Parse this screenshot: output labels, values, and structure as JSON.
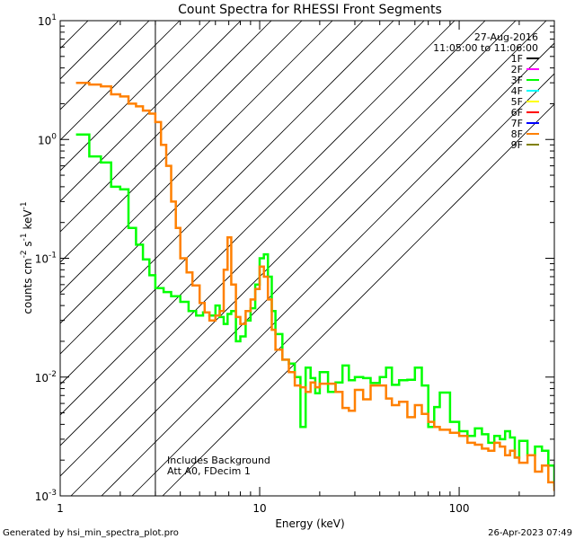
{
  "chart_data": {
    "type": "line",
    "title": "Count Spectra for RHESSI Front Segments",
    "xlabel": "Energy (keV)",
    "ylabel": {
      "base": "counts cm",
      "e1": "-2",
      "mid1": " s",
      "e2": "-1",
      "mid2": " keV",
      "e3": "-1"
    },
    "xscale": "log",
    "yscale": "log",
    "xlim": [
      1,
      300
    ],
    "ylim": [
      0.001,
      10
    ],
    "x_ticks": [
      {
        "value": 1,
        "label": "1"
      },
      {
        "value": 10,
        "label": "10"
      },
      {
        "value": 100,
        "label": "100"
      }
    ],
    "y_ticks": [
      {
        "value": 0.001,
        "base": "10",
        "exp": "-3"
      },
      {
        "value": 0.01,
        "base": "10",
        "exp": "-2"
      },
      {
        "value": 0.1,
        "base": "10",
        "exp": "-1"
      },
      {
        "value": 1,
        "base": "10",
        "exp": "0"
      },
      {
        "value": 10,
        "base": "10",
        "exp": "1"
      }
    ],
    "hatched_region_x": [
      1,
      3
    ],
    "date": "27-Aug-2016",
    "time_range": "11:05:00 to 11:06:00",
    "legend": [
      {
        "name": "1F",
        "color": "#000000"
      },
      {
        "name": "2F",
        "color": "#ff00ff"
      },
      {
        "name": "3F",
        "color": "#00ff00"
      },
      {
        "name": "4F",
        "color": "#00ffff"
      },
      {
        "name": "5F",
        "color": "#ffff00"
      },
      {
        "name": "6F",
        "color": "#ff0000"
      },
      {
        "name": "7F",
        "color": "#0000ff"
      },
      {
        "name": "8F",
        "color": "#ff8000"
      },
      {
        "name": "9F",
        "color": "#808000"
      }
    ],
    "annotations": [
      "Includes Background",
      "Att A0, FDecim 1"
    ],
    "series": [
      {
        "name": "3F",
        "color": "#00ff00",
        "x": [
          1.2,
          1.4,
          1.6,
          1.8,
          2.0,
          2.2,
          2.4,
          2.6,
          2.8,
          3.0,
          3.3,
          3.6,
          4.0,
          4.4,
          4.8,
          5.2,
          5.6,
          6.0,
          6.3,
          6.6,
          6.9,
          7.2,
          7.6,
          8.0,
          8.5,
          9.0,
          9.5,
          10.0,
          10.5,
          11.0,
          11.5,
          12.0,
          13.0,
          14.0,
          15.0,
          16.0,
          17.0,
          18.0,
          19.0,
          20.0,
          22.0,
          24.0,
          26.0,
          28.0,
          30.0,
          33.0,
          36.0,
          40.0,
          43.0,
          46.0,
          50.0,
          55.0,
          60.0,
          65.0,
          70.0,
          75.0,
          80.0,
          90.0,
          100.0,
          110.0,
          120.0,
          130.0,
          140.0,
          150.0,
          160.0,
          170.0,
          180.0,
          190.0,
          200.0,
          220.0,
          240.0,
          260.0,
          280.0,
          300.0
        ],
        "y": [
          1.1,
          0.72,
          0.64,
          0.4,
          0.38,
          0.18,
          0.13,
          0.098,
          0.072,
          0.056,
          0.052,
          0.048,
          0.043,
          0.036,
          0.033,
          0.035,
          0.033,
          0.04,
          0.032,
          0.028,
          0.034,
          0.036,
          0.02,
          0.022,
          0.03,
          0.038,
          0.06,
          0.1,
          0.108,
          0.07,
          0.036,
          0.023,
          0.014,
          0.013,
          0.01,
          0.0038,
          0.012,
          0.0098,
          0.0073,
          0.011,
          0.0075,
          0.009,
          0.0125,
          0.0094,
          0.01,
          0.0098,
          0.0089,
          0.01,
          0.012,
          0.0086,
          0.0094,
          0.0095,
          0.012,
          0.0085,
          0.0038,
          0.0056,
          0.0074,
          0.0042,
          0.0035,
          0.0032,
          0.0037,
          0.0033,
          0.0028,
          0.0032,
          0.003,
          0.0035,
          0.0031,
          0.0021,
          0.0029,
          0.0022,
          0.0026,
          0.0024,
          0.0018,
          0.0012
        ]
      },
      {
        "name": "8F",
        "color": "#ff8000",
        "x": [
          1.2,
          1.4,
          1.6,
          1.8,
          2.0,
          2.2,
          2.4,
          2.6,
          2.8,
          3.0,
          3.2,
          3.4,
          3.6,
          3.8,
          4.0,
          4.3,
          4.6,
          5.0,
          5.3,
          5.6,
          6.0,
          6.3,
          6.6,
          6.9,
          7.2,
          7.6,
          8.0,
          8.5,
          9.0,
          9.5,
          10.0,
          10.5,
          11.0,
          11.5,
          12.0,
          13.0,
          14.0,
          15.0,
          16.0,
          17.0,
          18.0,
          19.0,
          20.0,
          22.0,
          24.0,
          26.0,
          28.0,
          30.0,
          33.0,
          36.0,
          40.0,
          43.0,
          46.0,
          50.0,
          55.0,
          60.0,
          65.0,
          70.0,
          75.0,
          80.0,
          90.0,
          100.0,
          110.0,
          120.0,
          130.0,
          140.0,
          150.0,
          160.0,
          170.0,
          180.0,
          190.0,
          200.0,
          220.0,
          240.0,
          260.0,
          280.0,
          300.0
        ],
        "y": [
          3.0,
          2.9,
          2.8,
          2.4,
          2.3,
          2.0,
          1.9,
          1.75,
          1.65,
          1.4,
          0.9,
          0.6,
          0.3,
          0.18,
          0.1,
          0.076,
          0.059,
          0.042,
          0.035,
          0.03,
          0.033,
          0.036,
          0.08,
          0.15,
          0.06,
          0.032,
          0.028,
          0.036,
          0.045,
          0.055,
          0.085,
          0.07,
          0.045,
          0.025,
          0.017,
          0.014,
          0.011,
          0.0085,
          0.0082,
          0.0075,
          0.009,
          0.0082,
          0.0088,
          0.0088,
          0.0075,
          0.0055,
          0.0052,
          0.0078,
          0.0065,
          0.0085,
          0.0085,
          0.0066,
          0.0058,
          0.0062,
          0.0046,
          0.0058,
          0.0049,
          0.0042,
          0.0038,
          0.0036,
          0.0034,
          0.0032,
          0.0028,
          0.0027,
          0.0025,
          0.0024,
          0.0028,
          0.0026,
          0.0022,
          0.0024,
          0.0021,
          0.0019,
          0.0022,
          0.0016,
          0.0018,
          0.0013,
          0.0011
        ]
      }
    ]
  },
  "footer": {
    "generated_by": "Generated by hsi_min_spectra_plot.pro",
    "timestamp": "26-Apr-2023 07:49"
  }
}
